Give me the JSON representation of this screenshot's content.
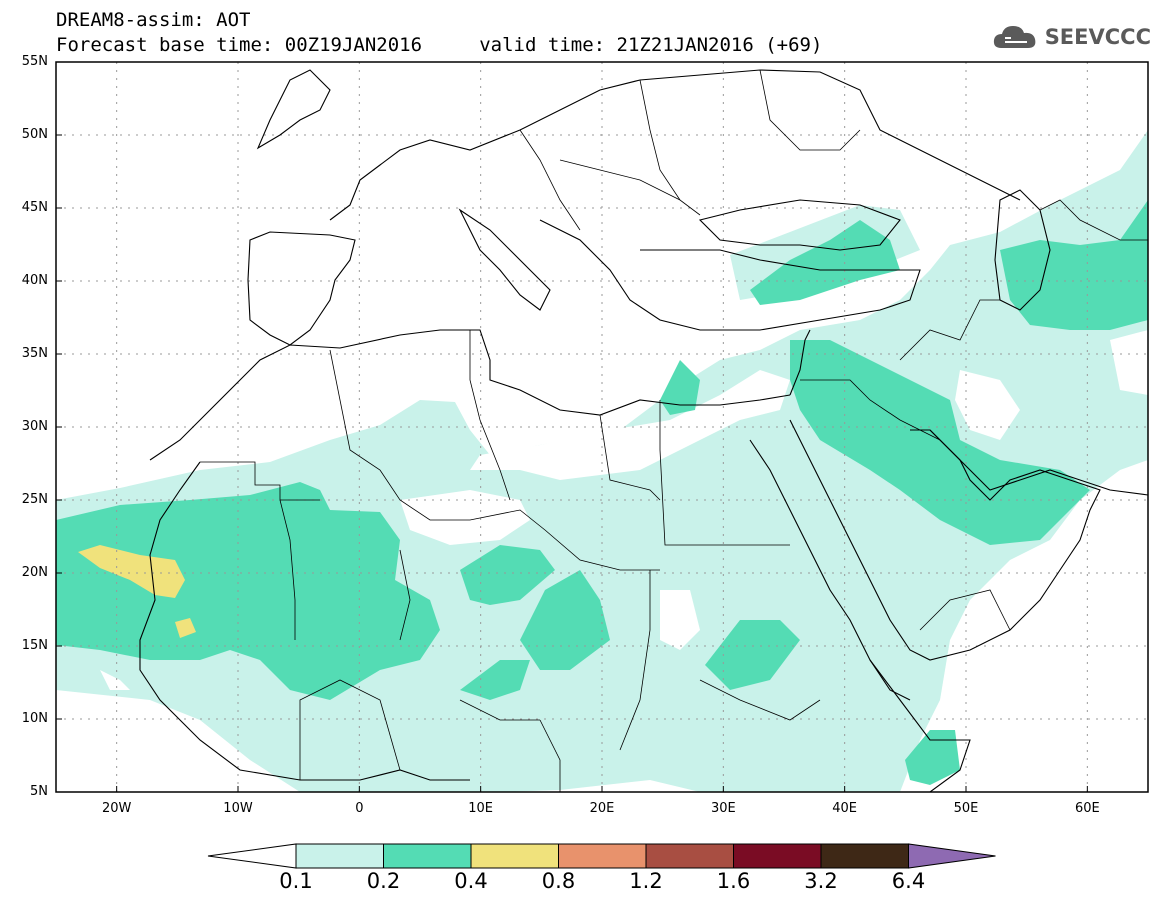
{
  "title": {
    "line1": "DREAM8-assim: AOT",
    "line2": "Forecast base time: 00Z19JAN2016     valid time: 21Z21JAN2016 (+69)"
  },
  "logo": {
    "text": "SEEVCCC",
    "icon": "cloud-icon"
  },
  "map": {
    "variable": "AOT",
    "lon_range": [
      -25,
      65
    ],
    "lat_range": [
      5,
      55
    ],
    "grid": true,
    "lat_labels": [
      "55N",
      "50N",
      "45N",
      "40N",
      "35N",
      "30N",
      "25N",
      "20N",
      "15N",
      "10N",
      "5N"
    ],
    "lon_labels": [
      "20W",
      "10W",
      "0",
      "10E",
      "20E",
      "30E",
      "40E",
      "50E",
      "60E"
    ]
  },
  "colorbar": {
    "levels": [
      "0.1",
      "0.2",
      "0.4",
      "0.8",
      "1.2",
      "1.6",
      "3.2",
      "6.4"
    ],
    "colors": [
      "#c9f2ea",
      "#54dcb4",
      "#f0e27c",
      "#e8926c",
      "#a84e42",
      "#7a0c24",
      "#3e2816",
      "#8e6ab2"
    ]
  }
}
